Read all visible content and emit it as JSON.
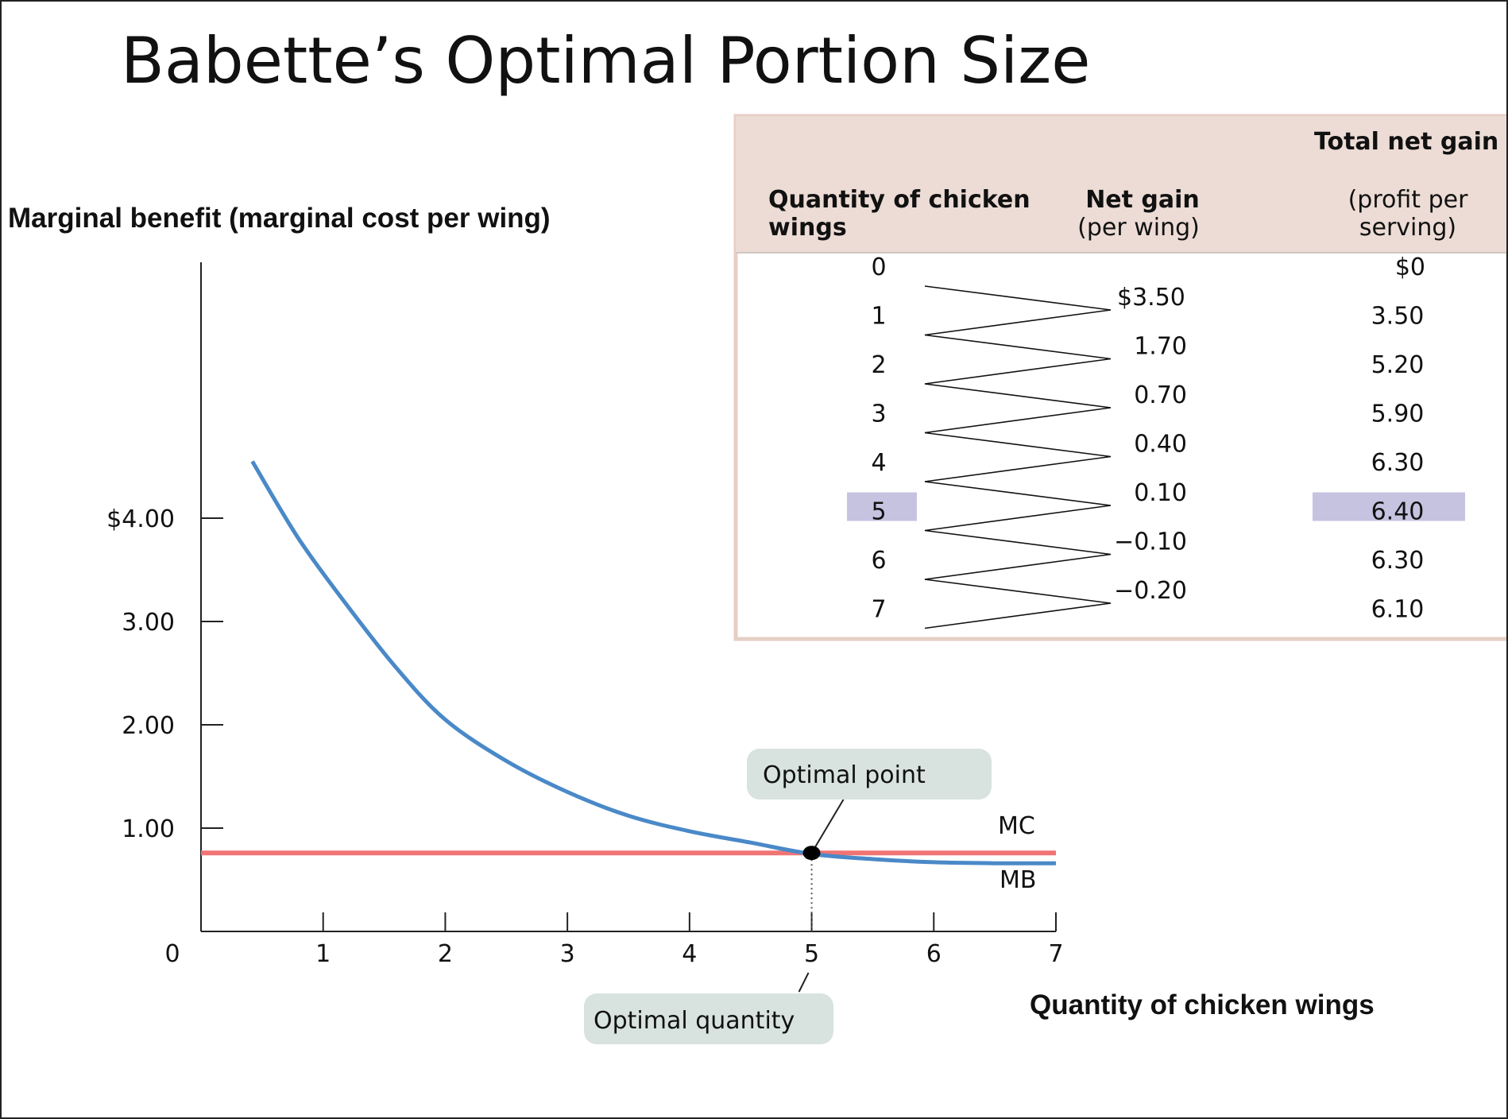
{
  "page_title": "Babette’s Optimal Portion Size",
  "chart_data": {
    "type": "line",
    "ylabel": "Marginal benefit (marginal cost per wing)",
    "xlabel": "Quantity of chicken wings",
    "xlim": [
      0,
      7
    ],
    "ylim": [
      0,
      4.5
    ],
    "x_ticks": [
      1,
      2,
      3,
      4,
      5,
      6,
      7
    ],
    "x_tick_labels": [
      "1",
      "2",
      "3",
      "4",
      "5",
      "6",
      "7"
    ],
    "origin_label": "0",
    "y_ticks": [
      1,
      2,
      3,
      4
    ],
    "y_tick_labels": [
      "1.00",
      "2.00",
      "3.00",
      "$4.00"
    ],
    "series": [
      {
        "name": "MB",
        "color": "#4a89c8",
        "x": [
          0.42,
          0.8,
          1.2,
          1.6,
          2.0,
          2.5,
          3.0,
          3.5,
          4.0,
          4.5,
          5.0,
          5.5,
          6.0,
          6.5,
          7.0
        ],
        "y": [
          4.55,
          3.8,
          3.15,
          2.55,
          2.05,
          1.65,
          1.35,
          1.12,
          0.97,
          0.86,
          0.75,
          0.7,
          0.67,
          0.66,
          0.66
        ]
      },
      {
        "name": "MC",
        "color": "#f07474",
        "x": [
          0,
          7
        ],
        "y": [
          0.76,
          0.76
        ]
      }
    ],
    "optimal_point": {
      "x": 5,
      "y": 0.76
    },
    "annotations": {
      "optimal_point_label": "Optimal point",
      "optimal_quantity_label": "Optimal quantity"
    }
  },
  "table": {
    "headers": {
      "quantity": "Quantity of chicken wings",
      "net_gain": "Net gain",
      "net_gain_sub": "(per wing)",
      "total": "Total net gain",
      "total_sub": "(profit per serving)"
    },
    "quantities": [
      "0",
      "1",
      "2",
      "3",
      "4",
      "5",
      "6",
      "7"
    ],
    "net_gains": [
      "$3.50",
      "1.70",
      "0.70",
      "0.40",
      "0.10",
      "−0.10",
      "−0.20"
    ],
    "totals": [
      "$0",
      "3.50",
      "5.20",
      "5.90",
      "6.30",
      "6.40",
      "6.30",
      "6.10"
    ],
    "highlight_index": 5,
    "header_color": "#ecdcd5",
    "highlight_color": "#c6c3e1"
  }
}
